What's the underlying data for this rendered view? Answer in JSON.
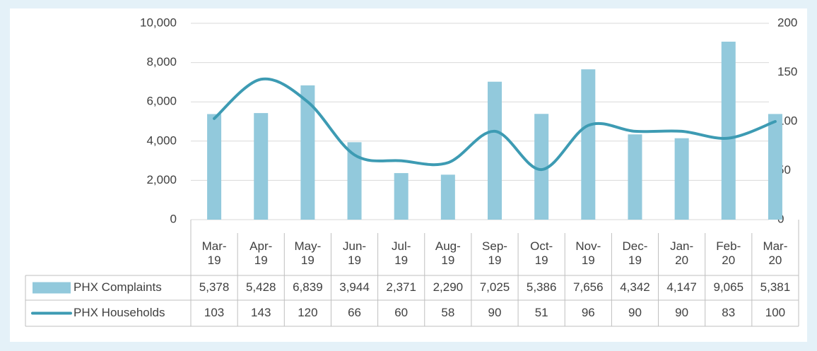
{
  "chart_data": {
    "type": "bar-line",
    "categories": [
      "Mar-19",
      "Apr-19",
      "May-19",
      "Jun-19",
      "Jul-19",
      "Aug-19",
      "Sep-19",
      "Oct-19",
      "Nov-19",
      "Dec-19",
      "Jan-20",
      "Feb-20",
      "Mar-20"
    ],
    "series": [
      {
        "name": "PHX Complaints",
        "type": "bar",
        "color": "#92c9dc",
        "values": [
          5378,
          5428,
          6839,
          3944,
          2371,
          2290,
          7025,
          5386,
          7656,
          4342,
          4147,
          9065,
          5381
        ],
        "value_labels": [
          "5,378",
          "5,428",
          "6,839",
          "3,944",
          "2,371",
          "2,290",
          "7,025",
          "5,386",
          "7,656",
          "4,342",
          "4,147",
          "9,065",
          "5,381"
        ]
      },
      {
        "name": "PHX Households",
        "type": "line",
        "color": "#3d9bb3",
        "axis": "y2",
        "values": [
          103,
          143,
          120,
          66,
          60,
          58,
          90,
          51,
          96,
          90,
          90,
          83,
          100
        ]
      }
    ],
    "ylim": [
      0,
      10000
    ],
    "yticks": [
      0,
      {
        "value": 2000,
        "label": "2,000"
      },
      {
        "value": 4000,
        "label": "4,000"
      },
      {
        "value": 6000,
        "label": "6,000"
      },
      {
        "value": 8000,
        "label": "8,000"
      },
      {
        "value": 10000,
        "label": "10,000"
      }
    ],
    "y2lim": [
      0,
      200
    ],
    "y2ticks": [
      0,
      50,
      100,
      150,
      200
    ],
    "grid": true
  }
}
